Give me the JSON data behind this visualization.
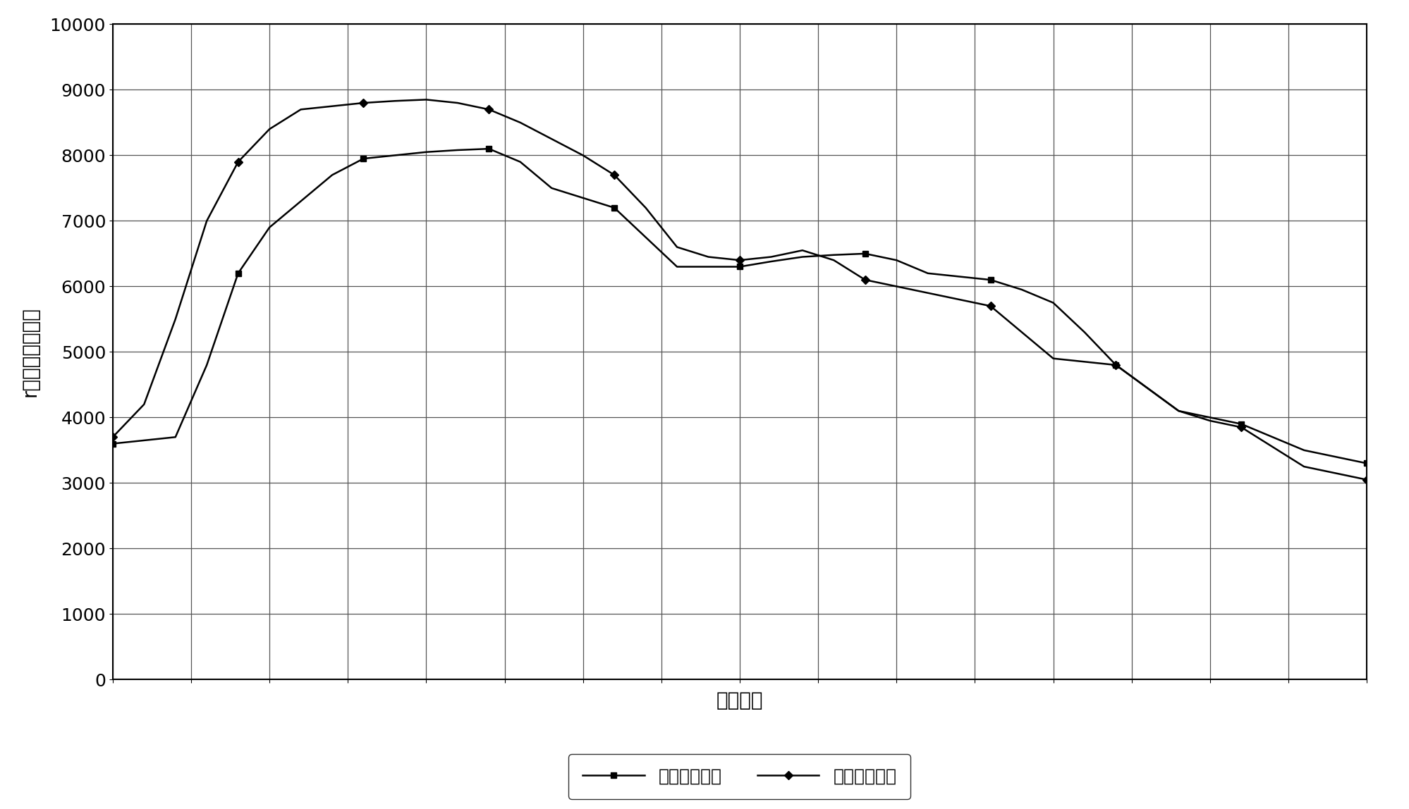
{
  "xlabel": "位置高度",
  "ylabel": "r总量（扚本底）",
  "ylim": [
    0,
    10000
  ],
  "xlim": [
    0,
    20
  ],
  "yticks": [
    0,
    1000,
    2000,
    3000,
    4000,
    5000,
    6000,
    7000,
    8000,
    9000,
    10000
  ],
  "num_xgrid": 16,
  "background_color": "#ffffff",
  "grid_color": "#555555",
  "series1_label": "实际测量结果",
  "series2_label": "理论计算结果",
  "series1_color": "#000000",
  "series2_color": "#000000",
  "series1_marker": "s",
  "series2_marker": "D",
  "series1_x": [
    0.0,
    0.5,
    1.0,
    1.5,
    2.0,
    2.5,
    3.0,
    3.5,
    4.0,
    4.5,
    5.0,
    5.5,
    6.0,
    6.5,
    7.0,
    7.5,
    8.0,
    8.5,
    9.0,
    9.5,
    10.0,
    10.5,
    11.0,
    11.5,
    12.0,
    12.5,
    13.0,
    13.5,
    14.0,
    14.5,
    15.0,
    15.5,
    16.0,
    16.5,
    17.0,
    17.5,
    18.0,
    18.5,
    19.0,
    19.5,
    20.0
  ],
  "series1_y": [
    3600,
    3650,
    3700,
    4800,
    6200,
    6900,
    7300,
    7700,
    7950,
    8000,
    8050,
    8080,
    8100,
    7900,
    7500,
    7350,
    7200,
    6750,
    6300,
    6300,
    6300,
    6380,
    6450,
    6480,
    6500,
    6400,
    6200,
    6150,
    6100,
    5950,
    5750,
    5300,
    4800,
    4450,
    4100,
    4000,
    3900,
    3700,
    3500,
    3400,
    3300
  ],
  "series2_x": [
    0.0,
    0.5,
    1.0,
    1.5,
    2.0,
    2.5,
    3.0,
    3.5,
    4.0,
    4.5,
    5.0,
    5.5,
    6.0,
    6.5,
    7.0,
    7.5,
    8.0,
    8.5,
    9.0,
    9.5,
    10.0,
    10.5,
    11.0,
    11.5,
    12.0,
    12.5,
    13.0,
    13.5,
    14.0,
    14.5,
    15.0,
    15.5,
    16.0,
    16.5,
    17.0,
    17.5,
    18.0,
    18.5,
    19.0,
    19.5,
    20.0
  ],
  "series2_y": [
    3700,
    4200,
    5500,
    7000,
    7900,
    8400,
    8700,
    8750,
    8800,
    8830,
    8850,
    8800,
    8700,
    8500,
    8250,
    8000,
    7700,
    7200,
    6600,
    6450,
    6400,
    6450,
    6550,
    6400,
    6100,
    6000,
    5900,
    5800,
    5700,
    5300,
    4900,
    4850,
    4800,
    4450,
    4100,
    3950,
    3850,
    3550,
    3250,
    3150,
    3050
  ],
  "legend_fontsize": 18,
  "axis_label_fontsize": 20,
  "tick_fontsize": 18,
  "line_width": 1.8,
  "marker_size": 6,
  "marker_every": 4
}
